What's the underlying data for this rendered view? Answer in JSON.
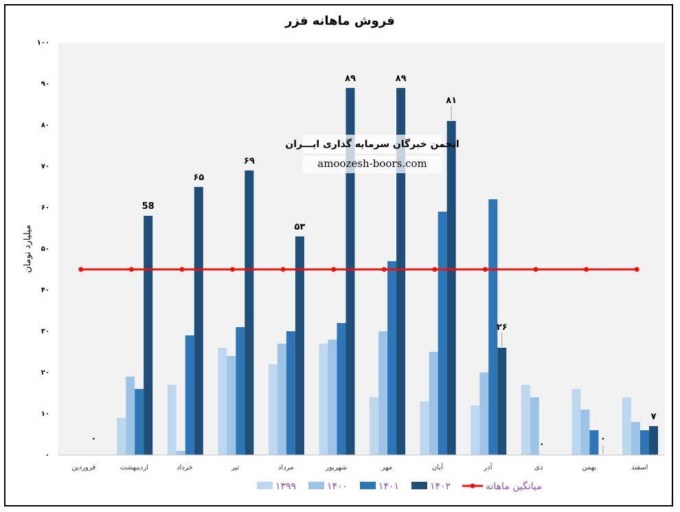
{
  "chart_data": {
    "type": "bar",
    "title": "فروش ماهانه فزر",
    "ylabel": "میلیارد تومان",
    "ylim": [
      0,
      100
    ],
    "yticks": [
      "۰",
      "۱۰",
      "۲۰",
      "۳۰",
      "۴۰",
      "۵۰",
      "۶۰",
      "۷۰",
      "۸۰",
      "۹۰",
      "۱۰۰"
    ],
    "categories": [
      "فروردین",
      "اردیبهشت",
      "خرداد",
      "تیر",
      "مرداد",
      "شهریور",
      "مهر",
      "آبان",
      "آذر",
      "دی",
      "بهمن",
      "اسفند"
    ],
    "series": [
      {
        "name": "۱۳۹۹",
        "color": "#bdd7ee",
        "values": [
          0,
          9,
          17,
          26,
          22,
          27,
          14,
          13,
          12,
          17,
          16,
          14
        ]
      },
      {
        "name": "۱۴۰۰",
        "color": "#9dc3e6",
        "values": [
          0,
          19,
          1,
          24,
          27,
          28,
          30,
          25,
          20,
          14,
          11,
          8
        ]
      },
      {
        "name": "۱۴۰۱",
        "color": "#2e75b6",
        "values": [
          0,
          16,
          29,
          31,
          30,
          32,
          47,
          59,
          62,
          0,
          6,
          6
        ]
      },
      {
        "name": "۱۴۰۲",
        "color": "#1f4e79",
        "values": [
          0,
          58,
          65,
          69,
          53,
          89,
          89,
          81,
          26,
          null,
          0,
          7
        ]
      }
    ],
    "data_labels": [
      "۰",
      "58",
      "۶۵",
      "۶۹",
      "۵۳",
      "۸۹",
      "۸۹",
      "۸۱",
      "۲۶",
      "۰",
      "۰",
      "۷"
    ],
    "average": {
      "name": "میانگین ماهانه",
      "color": "#e8130c",
      "value": 45
    },
    "legend_position": "bottom",
    "grid": false
  },
  "watermark": {
    "title": "انجمن خبرگان سرمایه گذاری ایـــران",
    "url": "amoozesh-boors.com"
  }
}
